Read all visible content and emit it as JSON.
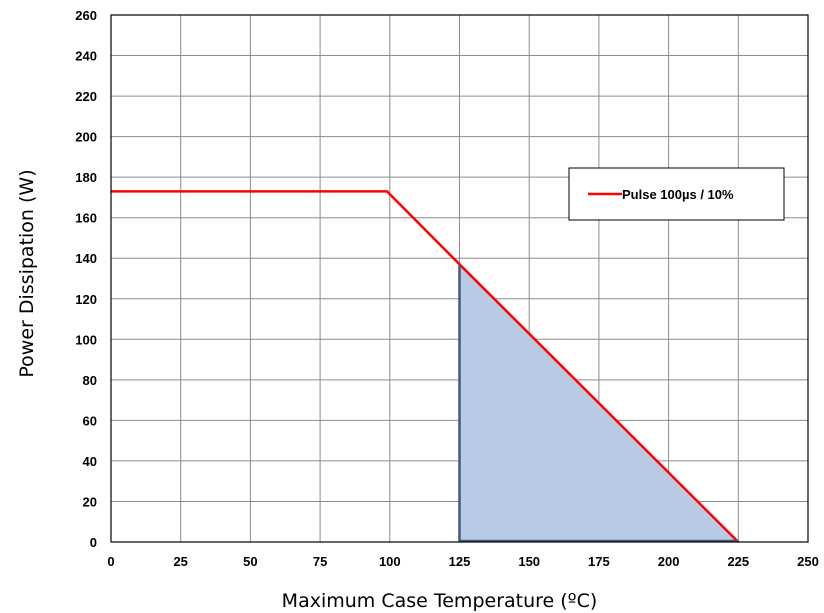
{
  "chart_data": {
    "type": "line",
    "title": "",
    "xlabel": "Maximum Case Temperature (ºC)",
    "ylabel": "Power Dissipation (W)",
    "xlim": [
      0,
      250
    ],
    "ylim": [
      0,
      260
    ],
    "x_ticks": [
      0,
      25,
      50,
      75,
      100,
      125,
      150,
      175,
      200,
      225,
      250
    ],
    "y_ticks": [
      0,
      20,
      40,
      60,
      80,
      100,
      120,
      140,
      160,
      180,
      200,
      220,
      240,
      260
    ],
    "grid": true,
    "legend_position": "top-right",
    "series": [
      {
        "name": "Pulse 100µs  / 10%",
        "color": "#ff0000",
        "x": [
          0,
          99,
          125,
          225
        ],
        "y": [
          173,
          173,
          137,
          0
        ]
      }
    ],
    "shaded_region": {
      "fill": "#b9cbe4",
      "stroke": "#3f5a7c",
      "x": [
        125,
        125,
        225
      ],
      "y": [
        0,
        137,
        0
      ]
    }
  }
}
